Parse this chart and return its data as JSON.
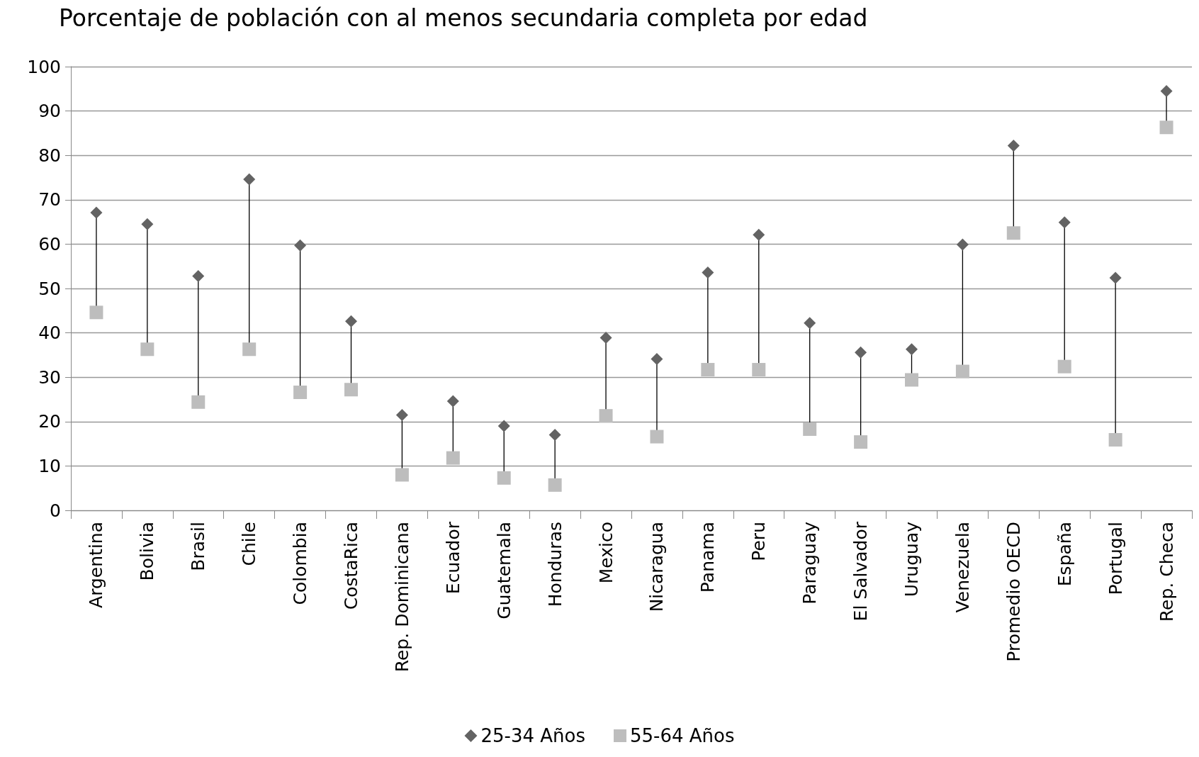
{
  "chart_data": {
    "type": "scatter",
    "title": "Porcentaje de población con al menos secundaria completa por edad",
    "categories": [
      "Argentina",
      "Bolivia",
      "Brasil",
      "Chile",
      "Colombia",
      "CostaRica",
      "Rep. Dominicana",
      "Ecuador",
      "Guatemala",
      "Honduras",
      "Mexico",
      "Nicaragua",
      "Panama",
      "Peru",
      "Paraguay",
      "El Salvador",
      "Uruguay",
      "Venezuela",
      "Promedio OECD",
      "España",
      "Portugal",
      "Rep. Checa"
    ],
    "series": [
      {
        "name": "25-34 Años",
        "color": "#636363",
        "marker": "diamond",
        "values": [
          67.1,
          64.5,
          52.8,
          74.6,
          59.7,
          42.6,
          21.5,
          24.6,
          19.0,
          17.0,
          38.9,
          34.1,
          53.6,
          62.1,
          42.2,
          35.6,
          36.3,
          59.9,
          82.2,
          64.9,
          52.4,
          94.5
        ]
      },
      {
        "name": "55-64 Años",
        "color": "#bdbdbd",
        "marker": "square",
        "values": [
          44.6,
          36.3,
          24.4,
          36.3,
          26.6,
          27.2,
          8.0,
          11.8,
          7.3,
          5.7,
          21.3,
          16.6,
          31.7,
          31.7,
          18.3,
          15.4,
          29.4,
          31.3,
          62.5,
          32.4,
          15.9,
          86.3
        ]
      }
    ],
    "ylim": [
      0,
      100
    ],
    "yticks": [
      0,
      10,
      20,
      30,
      40,
      50,
      60,
      70,
      80,
      90,
      100
    ],
    "grid": "y",
    "legend": "bottom"
  }
}
